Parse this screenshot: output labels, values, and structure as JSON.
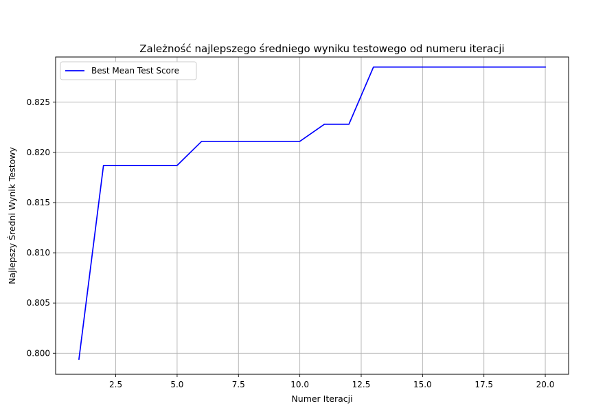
{
  "chart_data": {
    "type": "line",
    "title": "Zależność najlepszego średniego wyniku testowego od numeru iteracji",
    "xlabel": "Numer Iteracji",
    "ylabel": "Najlepszy Średni Wynik Testowy",
    "xlim": [
      0.05,
      20.95
    ],
    "ylim": [
      0.7979,
      0.8295
    ],
    "xticks": [
      2.5,
      5.0,
      7.5,
      10.0,
      12.5,
      15.0,
      17.5,
      20.0
    ],
    "xtick_labels": [
      "2.5",
      "5.0",
      "7.5",
      "10.0",
      "12.5",
      "15.0",
      "17.5",
      "20.0"
    ],
    "yticks": [
      0.8,
      0.805,
      0.81,
      0.815,
      0.82,
      0.825
    ],
    "ytick_labels": [
      "0.800",
      "0.805",
      "0.810",
      "0.815",
      "0.820",
      "0.825"
    ],
    "grid": true,
    "legend": {
      "position": "top-left"
    },
    "series": [
      {
        "name": "Best Mean Test Score",
        "color": "#0000ff",
        "x": [
          1,
          2,
          3,
          4,
          5,
          6,
          7,
          8,
          9,
          10,
          11,
          12,
          13,
          14,
          15,
          16,
          17,
          18,
          19,
          20
        ],
        "values": [
          0.7994,
          0.8187,
          0.8187,
          0.8187,
          0.8187,
          0.8211,
          0.8211,
          0.8211,
          0.8211,
          0.8211,
          0.8228,
          0.8228,
          0.8285,
          0.8285,
          0.8285,
          0.8285,
          0.8285,
          0.8285,
          0.8285,
          0.8285
        ]
      }
    ]
  }
}
